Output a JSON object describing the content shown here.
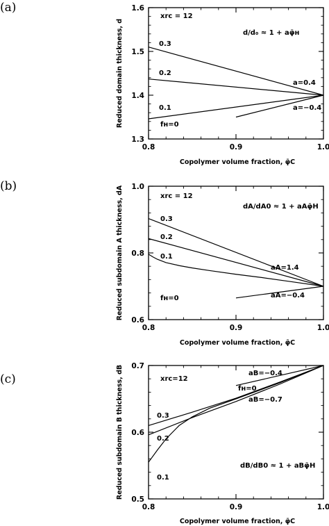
{
  "chart_data": [
    {
      "type": "line",
      "panel_label": "(a)",
      "xlabel": "Copolymer volume fraction, φ̄C",
      "ylabel": "Reduced domain thickness, d",
      "xlim": [
        0.8,
        1.0
      ],
      "ylim": [
        1.3,
        1.6
      ],
      "xticks": [
        0.8,
        0.9,
        1.0
      ],
      "xtick_labels": [
        "0.8",
        "0.9",
        "1.0"
      ],
      "yticks": [
        1.3,
        1.4,
        1.5,
        1.6
      ],
      "ytick_labels": [
        "1.3",
        "1.4",
        "1.5",
        "1.6"
      ],
      "grid": false,
      "annotations": {
        "param": "xrᴄ = 12",
        "equation": "d/d₀ ≈ 1 + aφ̄ʜ",
        "a_upper": "a=0.4",
        "a_lower": "a=−0.4"
      },
      "series": [
        {
          "name": "0.3",
          "x": [
            0.8,
            1.0
          ],
          "y": [
            1.51,
            1.4
          ]
        },
        {
          "name": "0.2",
          "x": [
            0.8,
            1.0
          ],
          "y": [
            1.437,
            1.4
          ]
        },
        {
          "name": "0.1",
          "x": [
            0.8,
            1.0
          ],
          "y": [
            1.346,
            1.4
          ]
        },
        {
          "name": "fʜ=0",
          "x": [
            0.9,
            1.0
          ],
          "y": [
            1.35,
            1.4
          ]
        }
      ]
    },
    {
      "type": "line",
      "panel_label": "(b)",
      "xlabel": "Copolymer volume fraction, φ̄C",
      "ylabel": "Reduced subdomain A thickness, dA",
      "xlim": [
        0.8,
        1.0
      ],
      "ylim": [
        0.6,
        1.0
      ],
      "xticks": [
        0.8,
        0.9,
        1.0
      ],
      "xtick_labels": [
        "0.8",
        "0.9",
        "1.0"
      ],
      "yticks": [
        0.6,
        0.8,
        1.0
      ],
      "ytick_labels": [
        "0.6",
        "0.8",
        "1.0"
      ],
      "grid": false,
      "annotations": {
        "param": "xrᴄ = 12",
        "equation": "dA/dA0 ≈ 1 + aAφ̄H",
        "a_upper": "aA=1.4",
        "a_lower": "aA=−0.4"
      },
      "series": [
        {
          "name": "0.3",
          "x": [
            0.8,
            1.0
          ],
          "y": [
            0.903,
            0.7
          ]
        },
        {
          "name": "0.2",
          "x": [
            0.8,
            1.0
          ],
          "y": [
            0.843,
            0.7
          ]
        },
        {
          "name": "0.1",
          "x": [
            0.8,
            0.805,
            0.81,
            0.82,
            0.835,
            0.85,
            0.87,
            0.9,
            0.93,
            0.96,
            1.0
          ],
          "y": [
            0.796,
            0.788,
            0.781,
            0.771,
            0.762,
            0.755,
            0.747,
            0.736,
            0.726,
            0.715,
            0.7
          ]
        },
        {
          "name": "fʜ=0",
          "x": [
            0.9,
            1.0
          ],
          "y": [
            0.665,
            0.7
          ]
        }
      ]
    },
    {
      "type": "line",
      "panel_label": "(c)",
      "xlabel": "Copolymer volume fraction, φ̄C",
      "ylabel": "Reduced subdomain B thickness, dB",
      "xlim": [
        0.8,
        1.0
      ],
      "ylim": [
        0.5,
        0.7
      ],
      "xticks": [
        0.8,
        0.9,
        1.0
      ],
      "xtick_labels": [
        "0.8",
        "0.9",
        "1.0"
      ],
      "yticks": [
        0.5,
        0.6,
        0.7
      ],
      "ytick_labels": [
        "0.5",
        "0.6",
        "0.7"
      ],
      "grid": false,
      "annotations": {
        "param": "xrᴄ=12",
        "equation": "dB/dB0 ≈ 1 + aBφ̄H",
        "a_upper": "aB=−0.4",
        "a_lower": "aB=−0.7"
      },
      "series": [
        {
          "name": "0.3",
          "x": [
            0.8,
            0.85,
            0.9,
            0.95,
            1.0
          ],
          "y": [
            0.61,
            0.63,
            0.651,
            0.675,
            0.7
          ]
        },
        {
          "name": "0.2",
          "x": [
            0.8,
            0.85,
            0.9,
            0.95,
            1.0
          ],
          "y": [
            0.596,
            0.622,
            0.646,
            0.672,
            0.7
          ]
        },
        {
          "name": "0.1",
          "x": [
            0.8,
            0.81,
            0.82,
            0.835,
            0.85,
            0.87,
            0.9,
            0.95,
            1.0
          ],
          "y": [
            0.555,
            0.573,
            0.59,
            0.61,
            0.623,
            0.636,
            0.65,
            0.674,
            0.7
          ]
        },
        {
          "name": "fʜ=0",
          "x": [
            0.9,
            1.0
          ],
          "y": [
            0.67,
            0.7
          ]
        }
      ]
    }
  ]
}
